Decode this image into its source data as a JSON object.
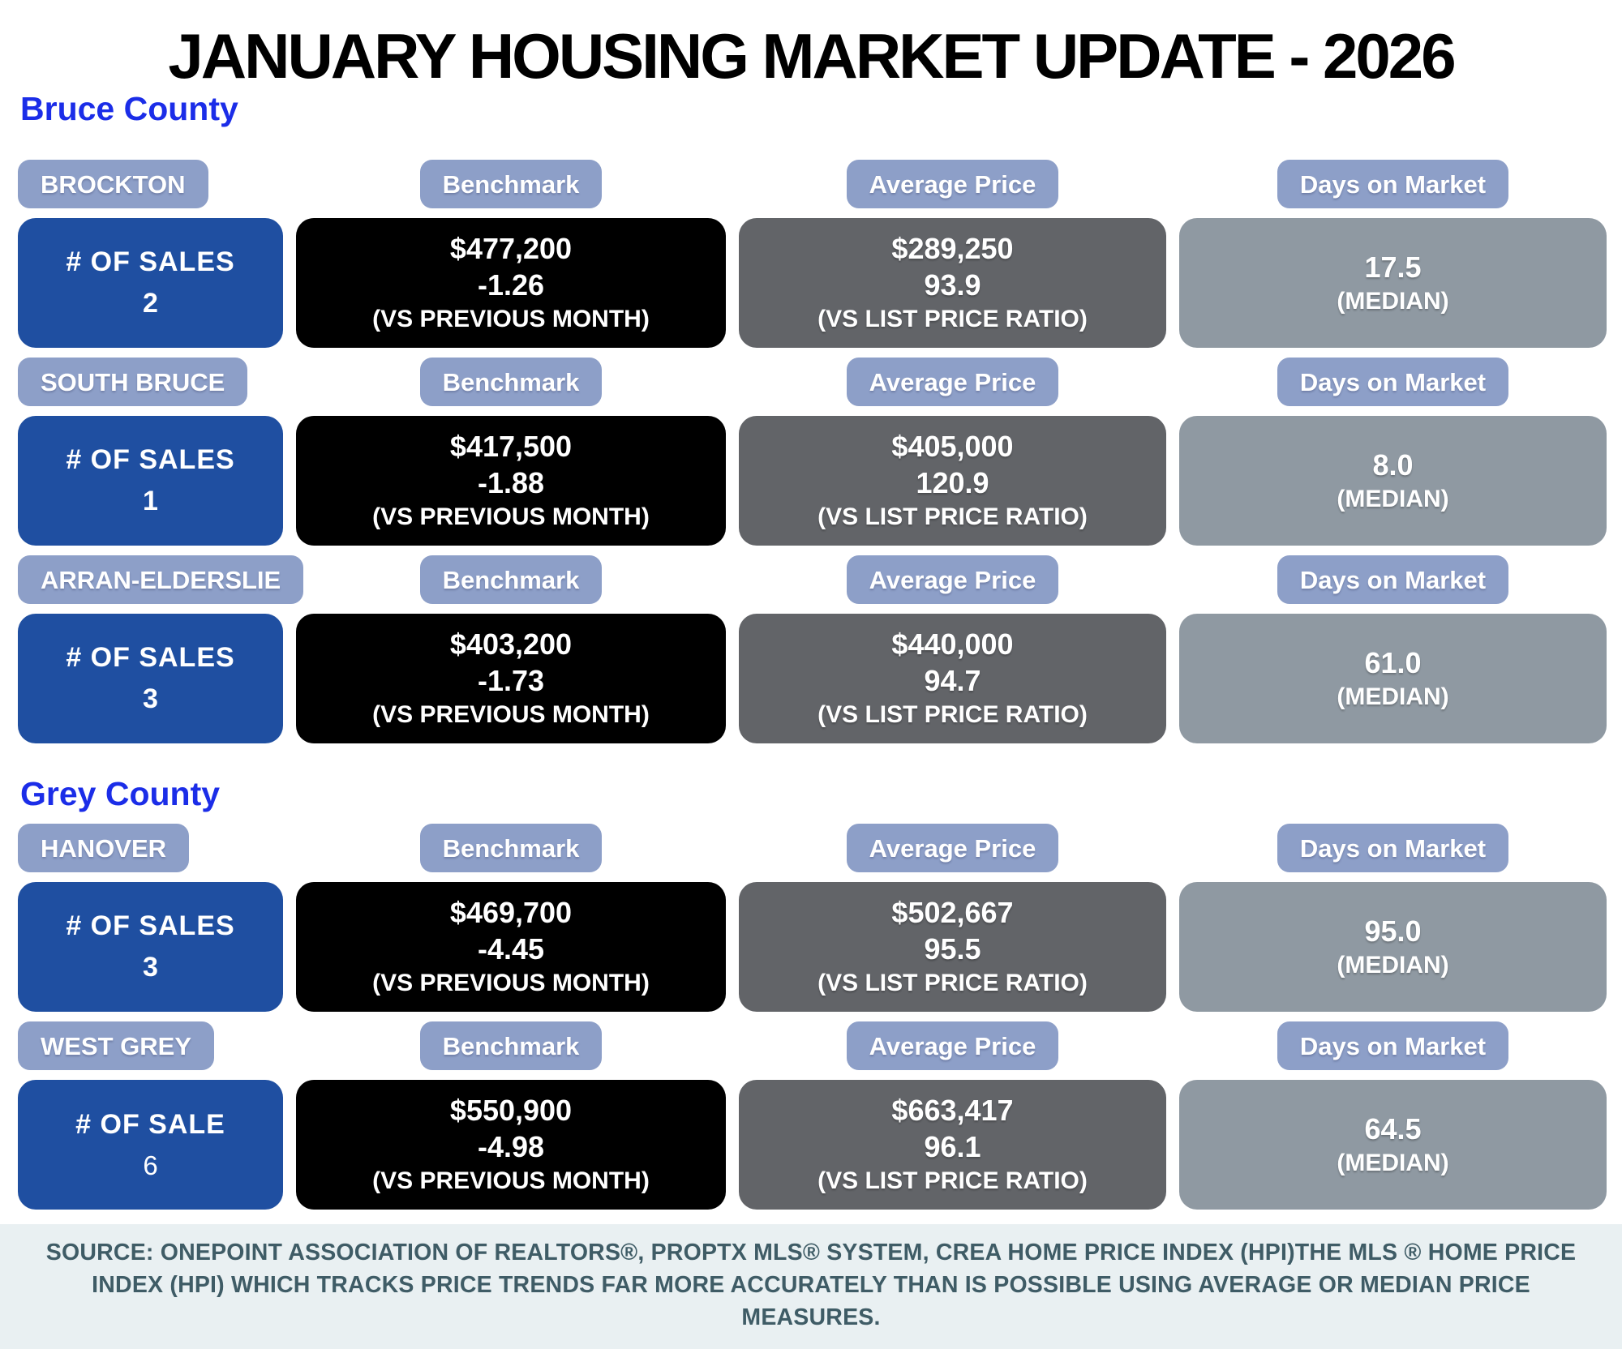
{
  "title": "JANUARY HOUSING MARKET UPDATE - 2026",
  "colors": {
    "header_pill": "#8d9fc8",
    "sales_box": "#1f4fa1",
    "benchmark_box": "#000000",
    "average_price_box": "#626468",
    "days_on_market_box": "#8f99a2",
    "section_label": "#1b2de8",
    "footer_background": "#e9f0f2",
    "footer_text": "#3f5c66"
  },
  "sections": [
    {
      "name": "Bruce County",
      "rows": [
        {
          "municipality": "BROCKTON",
          "sales_label": "#  OF SALES",
          "sales": "2",
          "benchmark": {
            "header": "Benchmark",
            "value": "$477,200",
            "change": "-1.26",
            "caption": "(VS PREVIOUS MONTH)"
          },
          "average_price": {
            "header": "Average Price",
            "value": "$289,250",
            "ratio": "93.9",
            "caption": "(VS LIST PRICE RATIO)"
          },
          "days_on_market": {
            "header": "Days on Market",
            "value": "17.5",
            "caption": "(MEDIAN)"
          }
        },
        {
          "municipality": "SOUTH BRUCE",
          "sales_label": "#  OF SALES",
          "sales": "1",
          "benchmark": {
            "header": "Benchmark",
            "value": "$417,500",
            "change": "-1.88",
            "caption": "(VS PREVIOUS MONTH)"
          },
          "average_price": {
            "header": "Average Price",
            "value": "$405,000",
            "ratio": "120.9",
            "caption": "(VS LIST PRICE RATIO)"
          },
          "days_on_market": {
            "header": "Days on Market",
            "value": "8.0",
            "caption": "(MEDIAN)"
          }
        },
        {
          "municipality": "ARRAN-ELDERSLIE",
          "sales_label": "#  OF SALES",
          "sales": "3",
          "benchmark": {
            "header": "Benchmark",
            "value": "$403,200",
            "change": "-1.73",
            "caption": "(VS PREVIOUS MONTH)"
          },
          "average_price": {
            "header": "Average Price",
            "value": "$440,000",
            "ratio": "94.7",
            "caption": "(VS LIST PRICE RATIO)"
          },
          "days_on_market": {
            "header": "Days on Market",
            "value": "61.0",
            "caption": "(MEDIAN)"
          }
        }
      ]
    },
    {
      "name": "Grey County",
      "rows": [
        {
          "municipality": "HANOVER",
          "sales_label": "#  OF SALES",
          "sales": "3",
          "benchmark": {
            "header": "Benchmark",
            "value": "$469,700",
            "change": "-4.45",
            "caption": "(VS PREVIOUS MONTH)"
          },
          "average_price": {
            "header": "Average Price",
            "value": "$502,667",
            "ratio": "95.5",
            "caption": "(VS LIST PRICE RATIO)"
          },
          "days_on_market": {
            "header": "Days on Market",
            "value": "95.0",
            "caption": "(MEDIAN)"
          }
        },
        {
          "municipality": "WEST GREY",
          "sales_label": "#  OF SALE",
          "sales": "6",
          "benchmark": {
            "header": "Benchmark",
            "value": "$550,900",
            "change": "-4.98",
            "caption": "(VS PREVIOUS MONTH)"
          },
          "average_price": {
            "header": "Average Price",
            "value": "$663,417",
            "ratio": "96.1",
            "caption": "(VS LIST PRICE RATIO)"
          },
          "days_on_market": {
            "header": "Days on Market",
            "value": "64.5",
            "caption": "(MEDIAN)"
          }
        }
      ]
    }
  ],
  "footer": {
    "line1": "SOURCE: ONEPOINT ASSOCIATION OF REALTORS®, PROPTX MLS® SYSTEM, CREA HOME PRICE INDEX (HPI)THE MLS ® HOME PRICE",
    "line2": "INDEX (HPI) WHICH TRACKS PRICE TRENDS FAR MORE ACCURATELY THAN IS POSSIBLE USING AVERAGE OR MEDIAN PRICE MEASURES."
  }
}
